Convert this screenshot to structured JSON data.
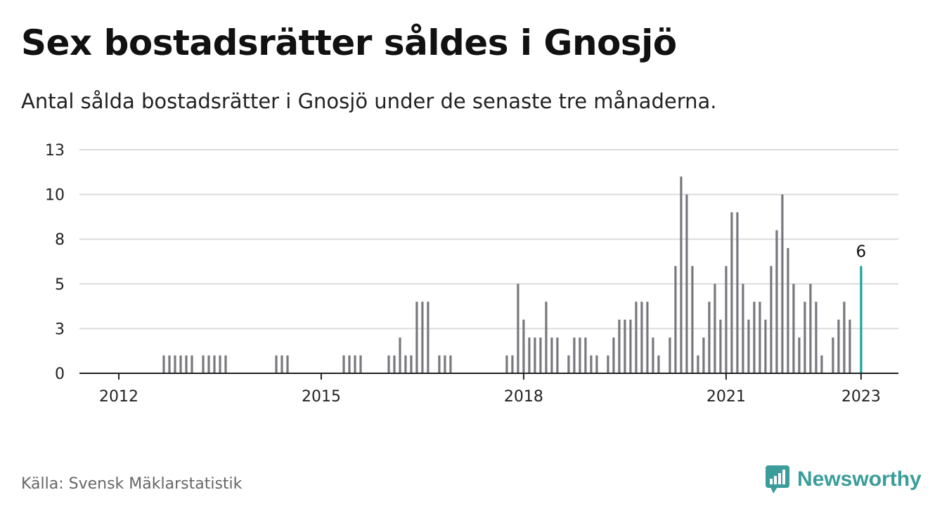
{
  "title": "Sex bostadsrätter såldes i Gnosjö",
  "subtitle": "Antal sålda bostadsrätter i Gnosjö under de senaste tre månaderna.",
  "source": "Källa: Svensk Mäklarstatistik",
  "brand": "Newsworthy",
  "colors": {
    "bar": "#77777d",
    "highlight": "#1aa3a0",
    "grid": "#dcdcdc",
    "axis": "#222222",
    "brand": "#3a9d9b"
  },
  "chart_data": {
    "type": "bar",
    "y_ticks": [
      "0",
      "3",
      "5",
      "8",
      "10",
      "13"
    ],
    "ylim": [
      0,
      12.5
    ],
    "x_ticks": [
      "2012",
      "2015",
      "2018",
      "2021",
      "2023"
    ],
    "grid": true,
    "annotations": [
      {
        "month": "2023-01",
        "text": "6"
      }
    ],
    "series": [
      {
        "values": [
          {
            "month": "2012-09",
            "value": 1
          },
          {
            "month": "2012-10",
            "value": 1
          },
          {
            "month": "2012-11",
            "value": 1
          },
          {
            "month": "2012-12",
            "value": 1
          },
          {
            "month": "2013-01",
            "value": 1
          },
          {
            "month": "2013-02",
            "value": 1
          },
          {
            "month": "2013-04",
            "value": 1
          },
          {
            "month": "2013-05",
            "value": 1
          },
          {
            "month": "2013-06",
            "value": 1
          },
          {
            "month": "2013-07",
            "value": 1
          },
          {
            "month": "2013-08",
            "value": 1
          },
          {
            "month": "2014-05",
            "value": 1
          },
          {
            "month": "2014-06",
            "value": 1
          },
          {
            "month": "2014-07",
            "value": 1
          },
          {
            "month": "2015-05",
            "value": 1
          },
          {
            "month": "2015-06",
            "value": 1
          },
          {
            "month": "2015-07",
            "value": 1
          },
          {
            "month": "2015-08",
            "value": 1
          },
          {
            "month": "2016-01",
            "value": 1
          },
          {
            "month": "2016-02",
            "value": 1
          },
          {
            "month": "2016-03",
            "value": 2
          },
          {
            "month": "2016-04",
            "value": 1
          },
          {
            "month": "2016-05",
            "value": 1
          },
          {
            "month": "2016-06",
            "value": 4
          },
          {
            "month": "2016-07",
            "value": 4
          },
          {
            "month": "2016-08",
            "value": 4
          },
          {
            "month": "2016-10",
            "value": 1
          },
          {
            "month": "2016-11",
            "value": 1
          },
          {
            "month": "2016-12",
            "value": 1
          },
          {
            "month": "2017-10",
            "value": 1
          },
          {
            "month": "2017-11",
            "value": 1
          },
          {
            "month": "2017-12",
            "value": 5
          },
          {
            "month": "2018-01",
            "value": 3
          },
          {
            "month": "2018-02",
            "value": 2
          },
          {
            "month": "2018-03",
            "value": 2
          },
          {
            "month": "2018-04",
            "value": 2
          },
          {
            "month": "2018-05",
            "value": 4
          },
          {
            "month": "2018-06",
            "value": 2
          },
          {
            "month": "2018-07",
            "value": 2
          },
          {
            "month": "2018-09",
            "value": 1
          },
          {
            "month": "2018-10",
            "value": 2
          },
          {
            "month": "2018-11",
            "value": 2
          },
          {
            "month": "2018-12",
            "value": 2
          },
          {
            "month": "2019-01",
            "value": 1
          },
          {
            "month": "2019-02",
            "value": 1
          },
          {
            "month": "2019-04",
            "value": 1
          },
          {
            "month": "2019-05",
            "value": 2
          },
          {
            "month": "2019-06",
            "value": 3
          },
          {
            "month": "2019-07",
            "value": 3
          },
          {
            "month": "2019-08",
            "value": 3
          },
          {
            "month": "2019-09",
            "value": 4
          },
          {
            "month": "2019-10",
            "value": 4
          },
          {
            "month": "2019-11",
            "value": 4
          },
          {
            "month": "2019-12",
            "value": 2
          },
          {
            "month": "2020-01",
            "value": 1
          },
          {
            "month": "2020-03",
            "value": 2
          },
          {
            "month": "2020-04",
            "value": 6
          },
          {
            "month": "2020-05",
            "value": 11
          },
          {
            "month": "2020-06",
            "value": 10
          },
          {
            "month": "2020-07",
            "value": 6
          },
          {
            "month": "2020-08",
            "value": 1
          },
          {
            "month": "2020-09",
            "value": 2
          },
          {
            "month": "2020-10",
            "value": 4
          },
          {
            "month": "2020-11",
            "value": 5
          },
          {
            "month": "2020-12",
            "value": 3
          },
          {
            "month": "2021-01",
            "value": 6
          },
          {
            "month": "2021-02",
            "value": 9
          },
          {
            "month": "2021-03",
            "value": 9
          },
          {
            "month": "2021-04",
            "value": 5
          },
          {
            "month": "2021-05",
            "value": 3
          },
          {
            "month": "2021-06",
            "value": 4
          },
          {
            "month": "2021-07",
            "value": 4
          },
          {
            "month": "2021-08",
            "value": 3
          },
          {
            "month": "2021-09",
            "value": 6
          },
          {
            "month": "2021-10",
            "value": 8
          },
          {
            "month": "2021-11",
            "value": 10
          },
          {
            "month": "2021-12",
            "value": 7
          },
          {
            "month": "2022-01",
            "value": 5
          },
          {
            "month": "2022-02",
            "value": 2
          },
          {
            "month": "2022-03",
            "value": 4
          },
          {
            "month": "2022-04",
            "value": 5
          },
          {
            "month": "2022-05",
            "value": 4
          },
          {
            "month": "2022-06",
            "value": 1
          },
          {
            "month": "2022-08",
            "value": 2
          },
          {
            "month": "2022-09",
            "value": 3
          },
          {
            "month": "2022-10",
            "value": 4
          },
          {
            "month": "2022-11",
            "value": 3
          },
          {
            "month": "2023-01",
            "value": 6
          }
        ]
      }
    ]
  }
}
